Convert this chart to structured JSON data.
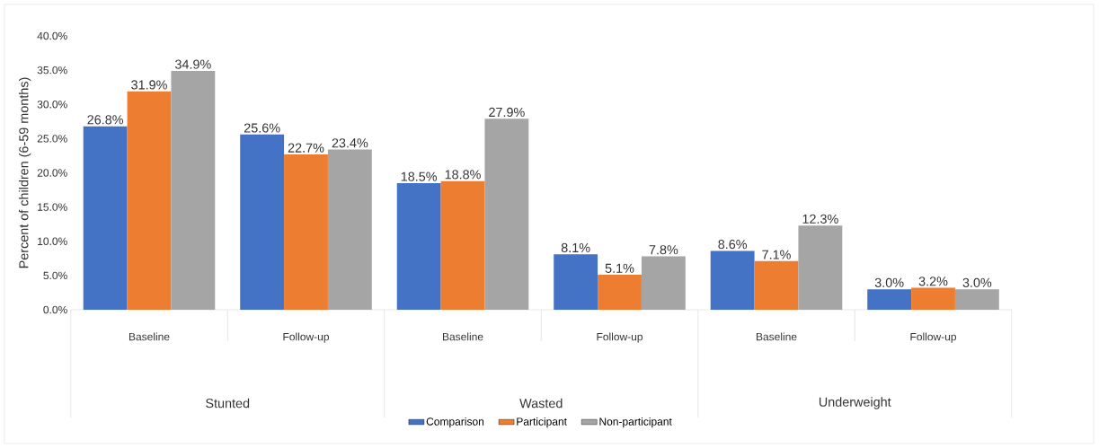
{
  "chart_data": {
    "type": "bar",
    "ylabel": "Percent of children (6-59 months)",
    "categories": [
      "Baseline",
      "Follow-up",
      "Baseline",
      "Follow-up",
      "Baseline",
      "Follow-up"
    ],
    "annotations": [
      "Stunted",
      "Wasted",
      "Underweight"
    ],
    "series": [
      {
        "name": "Comparison",
        "color": "#4472c4",
        "values": [
          26.8,
          25.6,
          18.5,
          8.1,
          8.6,
          3.0
        ],
        "value_labels": [
          "26.8%",
          "25.6%",
          "18.5%",
          "8.1%",
          "8.6%",
          "3.0%"
        ]
      },
      {
        "name": "Participant",
        "color": "#ed7d31",
        "values": [
          31.9,
          22.7,
          18.8,
          5.1,
          7.1,
          3.2
        ],
        "value_labels": [
          "31.9%",
          "22.7%",
          "18.8%",
          "5.1%",
          "7.1%",
          "3.2%"
        ]
      },
      {
        "name": "Non-participant",
        "color": "#a5a5a5",
        "values": [
          34.9,
          23.4,
          27.9,
          7.8,
          12.3,
          3.0
        ],
        "value_labels": [
          "34.9%",
          "23.4%",
          "27.9%",
          "7.8%",
          "12.3%",
          "3.0%"
        ]
      }
    ],
    "ylim": [
      0,
      40
    ],
    "yticks": [
      {
        "value": 0,
        "label": "0.0%"
      },
      {
        "value": 5,
        "label": "5.0%"
      },
      {
        "value": 10,
        "label": "10.0%"
      },
      {
        "value": 15,
        "label": "15.0%"
      },
      {
        "value": 20,
        "label": "20.0%"
      },
      {
        "value": 25,
        "label": "25.0%"
      },
      {
        "value": 30,
        "label": "30.0%"
      },
      {
        "value": 35,
        "label": "35.0%"
      },
      {
        "value": 40,
        "label": "40.0%"
      }
    ],
    "legend": "bottom",
    "grid": false
  }
}
